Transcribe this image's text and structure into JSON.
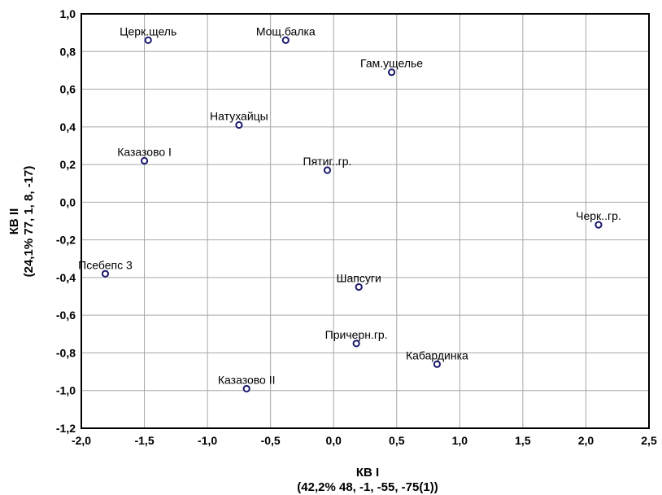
{
  "chart_data": {
    "type": "scatter",
    "xlabel": "КВ I",
    "xlabel_sub": "(42,2% 48, -1, -55, -75(1))",
    "ylabel": "КВ II",
    "ylabel_sub": "(24,1% 77, 1, 8, -17)",
    "xlim": [
      -2.0,
      2.5
    ],
    "ylim": [
      -1.2,
      1.0
    ],
    "xticks": [
      -2.0,
      -1.5,
      -1.0,
      -0.5,
      0.0,
      0.5,
      1.0,
      1.5,
      2.0,
      2.5
    ],
    "yticks": [
      -1.2,
      -1.0,
      -0.8,
      -0.6,
      -0.4,
      -0.2,
      0.0,
      0.2,
      0.4,
      0.6,
      0.8,
      1.0
    ],
    "xtick_labels": [
      "-2,0",
      "-1,5",
      "-1,0",
      "-0,5",
      "0,0",
      "0,5",
      "1,0",
      "1,5",
      "2,0",
      "2,5"
    ],
    "ytick_labels": [
      "-1,2",
      "-1,0",
      "-0,8",
      "-0,6",
      "-0,4",
      "-0,2",
      "0,0",
      "0,2",
      "0,4",
      "0,6",
      "0,8",
      "1,0"
    ],
    "grid": true,
    "marker_color": "#1a1a6e",
    "points": [
      {
        "label": "Церк.щель",
        "x": -1.47,
        "y": 0.86,
        "anchor": "middle"
      },
      {
        "label": "Мощ.балка",
        "x": -0.38,
        "y": 0.86,
        "anchor": "middle"
      },
      {
        "label": "Гам.ущелье",
        "x": 0.46,
        "y": 0.69,
        "anchor": "middle"
      },
      {
        "label": "Натухайцы",
        "x": -0.75,
        "y": 0.41,
        "anchor": "middle"
      },
      {
        "label": "Казазово I",
        "x": -1.5,
        "y": 0.22,
        "anchor": "middle"
      },
      {
        "label": "Пятиг..гр.",
        "x": -0.05,
        "y": 0.17,
        "anchor": "middle"
      },
      {
        "label": "Черк..гр.",
        "x": 2.1,
        "y": -0.12,
        "anchor": "middle"
      },
      {
        "label": "Псебепс 3",
        "x": -1.81,
        "y": -0.38,
        "anchor": "middle"
      },
      {
        "label": "Шапсуги",
        "x": 0.2,
        "y": -0.45,
        "anchor": "middle"
      },
      {
        "label": "Причерн.гр.",
        "x": 0.18,
        "y": -0.75,
        "anchor": "middle"
      },
      {
        "label": "Кабардинка",
        "x": 0.82,
        "y": -0.86,
        "anchor": "middle"
      },
      {
        "label": "Казазово II",
        "x": -0.69,
        "y": -0.99,
        "anchor": "middle"
      }
    ]
  }
}
